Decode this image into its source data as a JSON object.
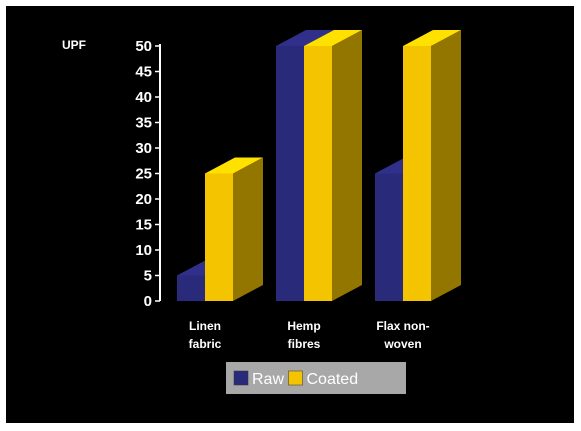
{
  "chart_data": {
    "type": "bar",
    "ylabel": "UPF",
    "categories": [
      [
        "Linen",
        "fabric"
      ],
      [
        "Hemp",
        "fibres"
      ],
      [
        "Flax non-",
        "woven"
      ]
    ],
    "series": [
      {
        "name": "Raw",
        "values": [
          5,
          50,
          25
        ],
        "color": "#2a2a7a"
      },
      {
        "name": "Coated",
        "values": [
          25,
          50,
          50
        ],
        "color": "#f5c400"
      }
    ],
    "ylim": [
      0,
      50
    ],
    "yticks": [
      0,
      5,
      10,
      15,
      20,
      25,
      30,
      35,
      40,
      45,
      50
    ],
    "grid": false,
    "legend_position": "bottom",
    "background": "#000000"
  }
}
